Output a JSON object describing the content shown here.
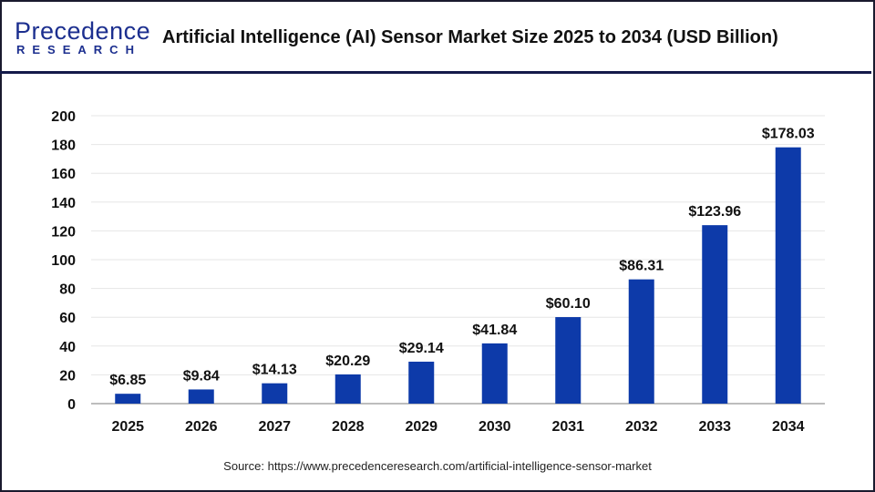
{
  "header": {
    "logo_text_top": "Precedence",
    "logo_text_bottom": "RESEARCH",
    "title": "Artificial Intelligence (AI) Sensor Market Size 2025 to 2034 (USD Billion)"
  },
  "source": "Source: https://www.precedenceresearch.com/artificial-intelligence-sensor-market",
  "colors": {
    "bar": "#0d3aa9",
    "header_rule": "#141a4a",
    "logo": "#1c2f8f"
  },
  "chart_data": {
    "type": "bar",
    "title": "Artificial Intelligence (AI) Sensor Market Size 2025 to 2034 (USD Billion)",
    "categories": [
      "2025",
      "2026",
      "2027",
      "2028",
      "2029",
      "2030",
      "2031",
      "2032",
      "2033",
      "2034"
    ],
    "values": [
      6.85,
      9.84,
      14.13,
      20.29,
      29.14,
      41.84,
      60.1,
      86.31,
      123.96,
      178.03
    ],
    "data_labels": [
      "$6.85",
      "$9.84",
      "$14.13",
      "$20.29",
      "$29.14",
      "$41.84",
      "$60.10",
      "$86.31",
      "$123.96",
      "$178.03"
    ],
    "yticks": [
      "0",
      "20",
      "40",
      "60",
      "80",
      "100",
      "120",
      "140",
      "160",
      "180",
      "200"
    ],
    "ylim": [
      0,
      200
    ],
    "xlabel": "",
    "ylabel": "",
    "grid": true
  }
}
